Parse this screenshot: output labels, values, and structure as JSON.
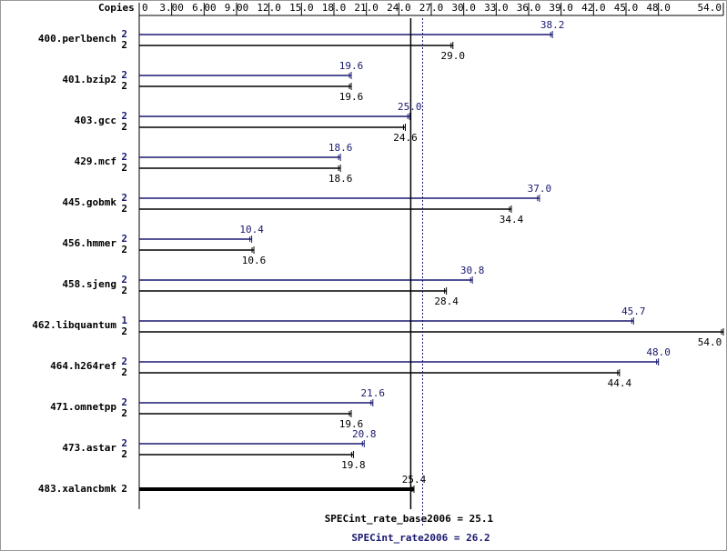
{
  "chart_data": {
    "type": "bar",
    "orientation": "horizontal",
    "copies_label": "Copies",
    "categories": [
      "400.perlbench",
      "401.bzip2",
      "403.gcc",
      "429.mcf",
      "445.gobmk",
      "456.hmmer",
      "458.sjeng",
      "462.libquantum",
      "464.h264ref",
      "471.omnetpp",
      "473.astar",
      "483.xalancbmk"
    ],
    "series": [
      {
        "color": "#191970",
        "copies": [
          2,
          2,
          2,
          2,
          2,
          2,
          2,
          1,
          2,
          2,
          2,
          null
        ],
        "values": [
          38.2,
          19.6,
          25.0,
          18.6,
          37.0,
          10.4,
          30.8,
          45.7,
          48.0,
          21.6,
          20.8,
          null
        ],
        "value_labels": [
          "38.2",
          "19.6",
          "25.0",
          "18.6",
          "37.0",
          "10.4",
          "30.8",
          "45.7",
          "48.0",
          "21.6",
          "20.8",
          null
        ]
      },
      {
        "color": "#000000",
        "copies": [
          2,
          2,
          2,
          2,
          2,
          2,
          2,
          2,
          2,
          2,
          2,
          2
        ],
        "values": [
          29.0,
          19.6,
          24.6,
          18.6,
          34.4,
          10.6,
          28.4,
          54.0,
          44.4,
          19.6,
          19.8,
          25.4
        ],
        "value_labels": [
          "29.0",
          "19.6",
          "24.6",
          "18.6",
          "34.4",
          "10.6",
          "28.4",
          "54.0",
          "44.4",
          "19.6",
          "19.8",
          "25.4"
        ]
      }
    ],
    "xlim": [
      0,
      54
    ],
    "xticks": [
      0,
      {
        "value": 3,
        "label": "3.00"
      },
      {
        "value": 6,
        "label": "6.00"
      },
      {
        "value": 9,
        "label": "9.00"
      },
      {
        "value": 12,
        "label": "12.0"
      },
      {
        "value": 15,
        "label": "15.0"
      },
      {
        "value": 18,
        "label": "18.0"
      },
      {
        "value": 21,
        "label": "21.0"
      },
      {
        "value": 24,
        "label": "24.0"
      },
      {
        "value": 27,
        "label": "27.0"
      },
      {
        "value": 30,
        "label": "30.0"
      },
      {
        "value": 33,
        "label": "33.0"
      },
      {
        "value": 36,
        "label": "36.0"
      },
      {
        "value": 39,
        "label": "39.0"
      },
      {
        "value": 42,
        "label": "42.0"
      },
      {
        "value": 45,
        "label": "45.0"
      },
      {
        "value": 48,
        "label": "48.0"
      },
      {
        "value": 54,
        "label": "54.0"
      }
    ],
    "reference_lines": [
      {
        "value": 25.1,
        "label": "SPECint_rate_base2006 = 25.1",
        "color": "#000000",
        "dashed": false
      },
      {
        "value": 26.2,
        "label": "SPECint_rate2006 = 26.2",
        "color": "#191970",
        "dashed": true
      }
    ]
  }
}
